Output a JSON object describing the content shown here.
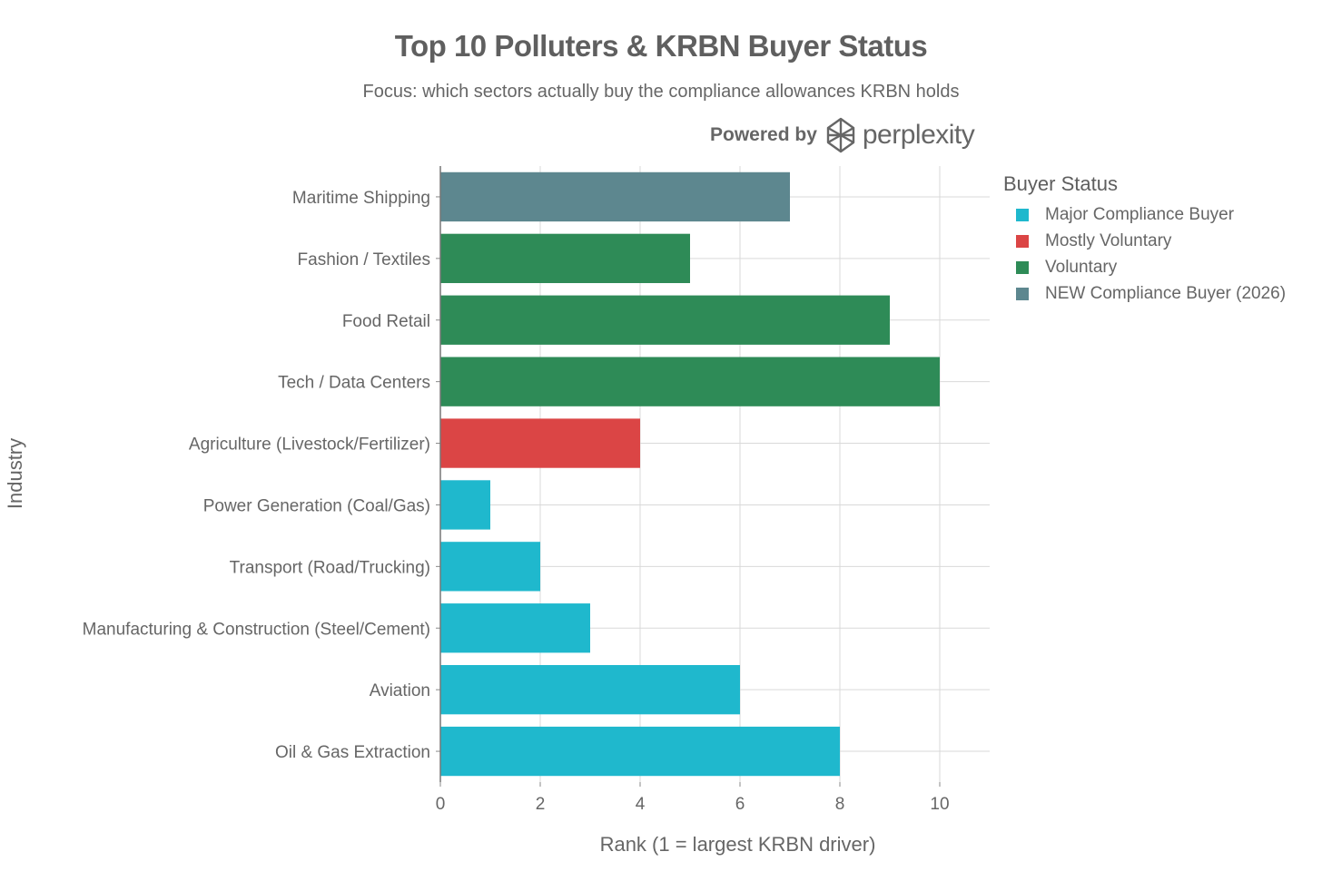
{
  "title": "Top 10 Polluters & KRBN Buyer Status",
  "subtitle": "Focus: which sectors actually buy the compliance allowances KRBN holds",
  "brand": {
    "powered_by": "Powered by",
    "name": "perplexity",
    "logo_icon": "perplexity-logo-icon"
  },
  "legend": {
    "title": "Buyer Status",
    "items": [
      {
        "label": "Major Compliance Buyer",
        "color": "#1fb8cd"
      },
      {
        "label": "Mostly Voluntary",
        "color": "#db4545"
      },
      {
        "label": "Voluntary",
        "color": "#2e8b57"
      },
      {
        "label": "NEW Compliance Buyer (2026)",
        "color": "#5d878f"
      }
    ]
  },
  "chart_data": {
    "type": "bar",
    "orientation": "horizontal",
    "xlabel": "Rank (1 = largest KRBN driver)",
    "ylabel": "Industry",
    "xlim": [
      0,
      11
    ],
    "xticks": [
      0,
      2,
      4,
      6,
      8,
      10
    ],
    "grid": true,
    "legend_position": "right",
    "categories": [
      "Maritime Shipping",
      "Fashion / Textiles",
      "Food Retail",
      "Tech / Data Centers",
      "Agriculture (Livestock/Fertilizer)",
      "Power Generation (Coal/Gas)",
      "Transport (Road/Trucking)",
      "Manufacturing & Construction (Steel/Cement)",
      "Aviation",
      "Oil & Gas Extraction"
    ],
    "values": [
      7,
      5,
      9,
      10,
      4,
      1,
      2,
      3,
      6,
      8
    ],
    "status": [
      "NEW Compliance Buyer (2026)",
      "Voluntary",
      "Voluntary",
      "Voluntary",
      "Mostly Voluntary",
      "Major Compliance Buyer",
      "Major Compliance Buyer",
      "Major Compliance Buyer",
      "Major Compliance Buyer",
      "Major Compliance Buyer"
    ]
  }
}
